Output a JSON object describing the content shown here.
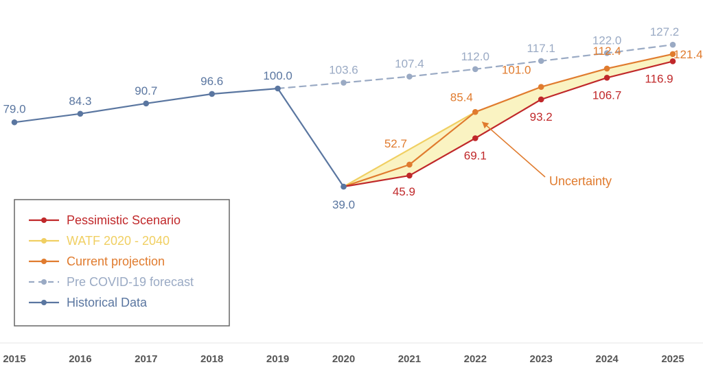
{
  "chart_data": {
    "type": "line",
    "categories": [
      "2015",
      "2016",
      "2017",
      "2018",
      "2019",
      "2020",
      "2021",
      "2022",
      "2023",
      "2024",
      "2025"
    ],
    "ylim": [
      30,
      135
    ],
    "grid": false,
    "legend_position": "bottom-left",
    "series": [
      {
        "name": "Historical Data",
        "color": "#5a76a0",
        "dashed": false,
        "points": [
          {
            "x": "2015",
            "y": 79.0,
            "label": "79.0"
          },
          {
            "x": "2016",
            "y": 84.3,
            "label": "84.3"
          },
          {
            "x": "2017",
            "y": 90.7,
            "label": "90.7"
          },
          {
            "x": "2018",
            "y": 96.6,
            "label": "96.6"
          },
          {
            "x": "2019",
            "y": 100.0,
            "label": "100.0"
          },
          {
            "x": "2020",
            "y": 39.0,
            "label": "39.0"
          }
        ]
      },
      {
        "name": "Pre COVID-19 forecast",
        "color": "#9aaac4",
        "dashed": true,
        "points": [
          {
            "x": "2019",
            "y": 100.0,
            "label": ""
          },
          {
            "x": "2020",
            "y": 103.6,
            "label": "103.6"
          },
          {
            "x": "2021",
            "y": 107.4,
            "label": "107.4"
          },
          {
            "x": "2022",
            "y": 112.0,
            "label": "112.0"
          },
          {
            "x": "2023",
            "y": 117.1,
            "label": "117.1"
          },
          {
            "x": "2024",
            "y": 122.0,
            "label": "122.0"
          },
          {
            "x": "2025",
            "y": 127.2,
            "label": "127.2"
          }
        ]
      },
      {
        "name": "WATF 2020 - 2040",
        "color": "#f0cf62",
        "dashed": false,
        "points": [
          {
            "x": "2020",
            "y": 39.0,
            "label": ""
          },
          {
            "x": "2022",
            "y": 85.4,
            "label": ""
          }
        ]
      },
      {
        "name": "Current projection",
        "color": "#e07b2e",
        "dashed": false,
        "points": [
          {
            "x": "2020",
            "y": 39.0,
            "label": ""
          },
          {
            "x": "2021",
            "y": 52.7,
            "label": "52.7"
          },
          {
            "x": "2022",
            "y": 85.4,
            "label": "85.4"
          },
          {
            "x": "2023",
            "y": 101.0,
            "label": "101.0"
          },
          {
            "x": "2024",
            "y": 112.4,
            "label": "112.4"
          },
          {
            "x": "2025",
            "y": 121.4,
            "label": "121.4"
          }
        ]
      },
      {
        "name": "Pessimistic Scenario",
        "color": "#c0282a",
        "dashed": false,
        "points": [
          {
            "x": "2020",
            "y": 39.0,
            "label": ""
          },
          {
            "x": "2021",
            "y": 45.9,
            "label": "45.9"
          },
          {
            "x": "2022",
            "y": 69.1,
            "label": "69.1"
          },
          {
            "x": "2023",
            "y": 93.2,
            "label": "93.2"
          },
          {
            "x": "2024",
            "y": 106.7,
            "label": "106.7"
          },
          {
            "x": "2025",
            "y": 116.9,
            "label": "116.9"
          }
        ]
      }
    ],
    "uncertainty_band": {
      "fill": "#faf3c2",
      "upper": [
        {
          "x": "2020",
          "y": 39.0
        },
        {
          "x": "2022",
          "y": 85.4
        },
        {
          "x": "2023",
          "y": 101.0
        },
        {
          "x": "2024",
          "y": 112.4
        },
        {
          "x": "2025",
          "y": 121.4
        }
      ],
      "lower": [
        {
          "x": "2020",
          "y": 39.0
        },
        {
          "x": "2021",
          "y": 45.9
        },
        {
          "x": "2022",
          "y": 69.1
        },
        {
          "x": "2023",
          "y": 93.2
        },
        {
          "x": "2024",
          "y": 106.7
        },
        {
          "x": "2025",
          "y": 116.9
        }
      ]
    },
    "annotations": [
      {
        "text": "Uncertainty",
        "color": "#e07b2e",
        "arrow_to": {
          "x": "2022",
          "y": 81.0
        }
      }
    ],
    "legend": [
      {
        "label": "Pessimistic Scenario",
        "color": "#c0282a",
        "dashed": false
      },
      {
        "label": "WATF 2020 - 2040",
        "color": "#f0cf62",
        "dashed": false
      },
      {
        "label": "Current projection",
        "color": "#e07b2e",
        "dashed": false
      },
      {
        "label": "Pre COVID-19 forecast",
        "color": "#9aaac4",
        "dashed": true
      },
      {
        "label": "Historical Data",
        "color": "#5a76a0",
        "dashed": false
      }
    ]
  }
}
